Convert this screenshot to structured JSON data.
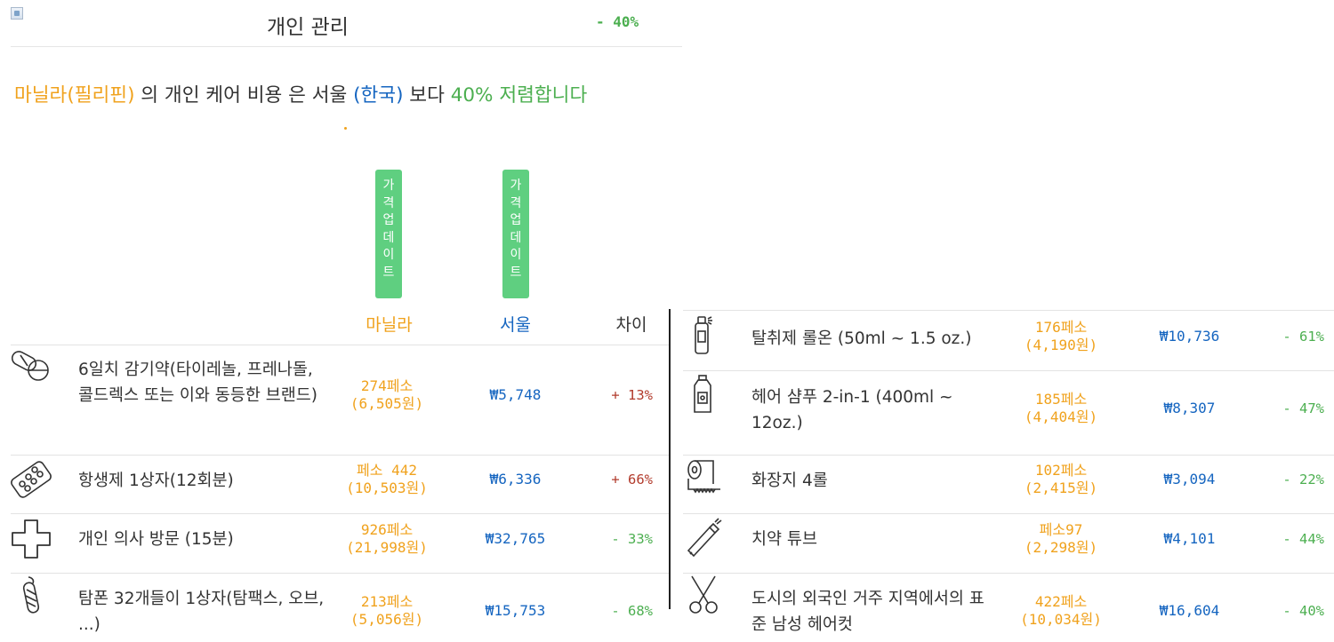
{
  "header": {
    "title": "개인 관리",
    "diff": "- 40%"
  },
  "summary": {
    "city": "마닐라(필리핀)",
    "t1": " 의 개인 케어 비용 은 서울 ",
    "compare": "(한국)",
    "t2": " 보다 ",
    "pct_text": "40% 저렴합니다"
  },
  "update_button": {
    "chars": [
      "가",
      "격",
      "업",
      "데",
      "이",
      "트"
    ]
  },
  "columns": {
    "city1": "마닐라",
    "city2": "서울",
    "diff": "차이"
  },
  "colors": {
    "orange": "#f0a21d",
    "blue": "#1565c0",
    "green": "#4caf50",
    "red": "#b23b2c",
    "button": "#5fcf80"
  },
  "left_items": [
    {
      "icon": "pills-icon",
      "name": "6일치 감기약(타이레놀, 프레나돌, 콜드렉스 또는 이와 동등한 브랜드)",
      "local_1": "274페소",
      "local_2": "(6,505원)",
      "usd": "₩5,748",
      "diff": "+ 13%"
    },
    {
      "icon": "blister-pack-icon",
      "name": "항생제 1상자(12회분)",
      "local_1": "페소 442",
      "local_2": "(10,503원)",
      "usd": "₩6,336",
      "diff": "+ 66%"
    },
    {
      "icon": "medical-cross-icon",
      "name": "개인 의사 방문 (15분)",
      "local_1": "926페소",
      "local_2": "(21,998원)",
      "usd": "₩32,765",
      "diff": "- 33%"
    },
    {
      "icon": "tampon-icon",
      "name": "탐폰 32개들이 1상자(탐팩스, 오브, ...)",
      "local_1": "213페소",
      "local_2": "(5,056원)",
      "usd": "₩15,753",
      "diff": "- 68%"
    }
  ],
  "right_items": [
    {
      "icon": "deodorant-icon",
      "name": "탈취제 롤온 (50ml ~ 1.5 oz.)",
      "local_1": "176페소",
      "local_2": "(4,190원)",
      "usd": "₩10,736",
      "diff": "- 61%"
    },
    {
      "icon": "shampoo-bottle-icon",
      "name": "헤어 샴푸 2-in-1 (400ml ~ 12oz.)",
      "local_1": "185페소",
      "local_2": "(4,404원)",
      "usd": "₩8,307",
      "diff": "- 47%"
    },
    {
      "icon": "toilet-paper-icon",
      "name": "화장지 4롤",
      "local_1": "102페소",
      "local_2": "(2,415원)",
      "usd": "₩3,094",
      "diff": "- 22%"
    },
    {
      "icon": "toothpaste-icon",
      "name": "치약 튜브",
      "local_1": "페소97",
      "local_2": "(2,298원)",
      "usd": "₩4,101",
      "diff": "- 44%"
    },
    {
      "icon": "scissors-icon",
      "name": "도시의 외국인 거주 지역에서의 표준 남성 헤어컷",
      "local_1": "422페소",
      "local_2": "(10,034원)",
      "usd": "₩16,604",
      "diff": "- 40%"
    }
  ]
}
